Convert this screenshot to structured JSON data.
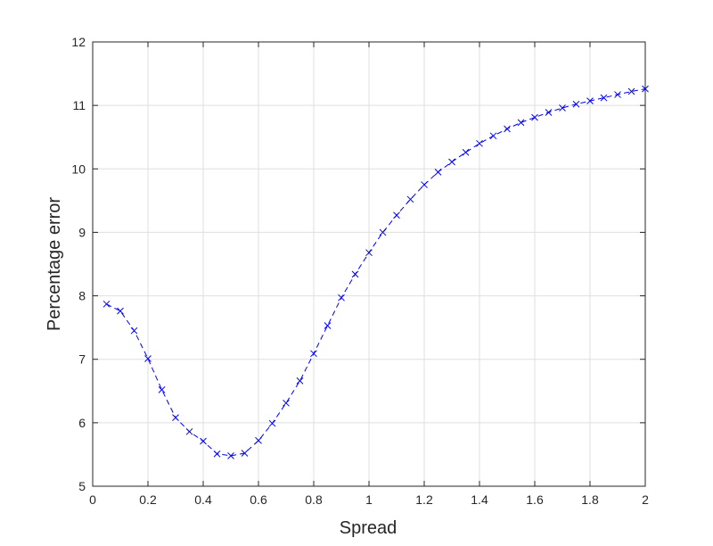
{
  "chart_data": {
    "type": "line",
    "title": "",
    "xlabel": "Spread",
    "ylabel": "Percentage error",
    "xlim": [
      0,
      2
    ],
    "ylim": [
      5,
      12
    ],
    "xticks": [
      "0",
      "0.2",
      "0.4",
      "0.6",
      "0.8",
      "1",
      "1.2",
      "1.4",
      "1.6",
      "1.8",
      "2"
    ],
    "yticks": [
      "5",
      "6",
      "7",
      "8",
      "9",
      "10",
      "11",
      "12"
    ],
    "grid": true,
    "series": [
      {
        "color": "#0000ff",
        "line_style": "dashed",
        "marker": "x",
        "x": [
          0.05,
          0.1,
          0.15,
          0.2,
          0.25,
          0.3,
          0.35,
          0.4,
          0.45,
          0.5,
          0.55,
          0.6,
          0.65,
          0.7,
          0.75,
          0.8,
          0.85,
          0.9,
          0.95,
          1.0,
          1.05,
          1.1,
          1.15,
          1.2,
          1.25,
          1.3,
          1.35,
          1.4,
          1.45,
          1.5,
          1.55,
          1.6,
          1.65,
          1.7,
          1.75,
          1.8,
          1.85,
          1.9,
          1.95,
          2.0
        ],
        "y": [
          7.87,
          7.76,
          7.45,
          7.01,
          6.52,
          6.08,
          5.86,
          5.71,
          5.51,
          5.48,
          5.52,
          5.72,
          5.99,
          6.31,
          6.66,
          7.09,
          7.53,
          7.97,
          8.34,
          8.68,
          9.0,
          9.27,
          9.52,
          9.75,
          9.95,
          10.11,
          10.26,
          10.4,
          10.52,
          10.63,
          10.73,
          10.81,
          10.89,
          10.96,
          11.02,
          11.07,
          11.12,
          11.17,
          11.22,
          11.26
        ]
      }
    ]
  }
}
